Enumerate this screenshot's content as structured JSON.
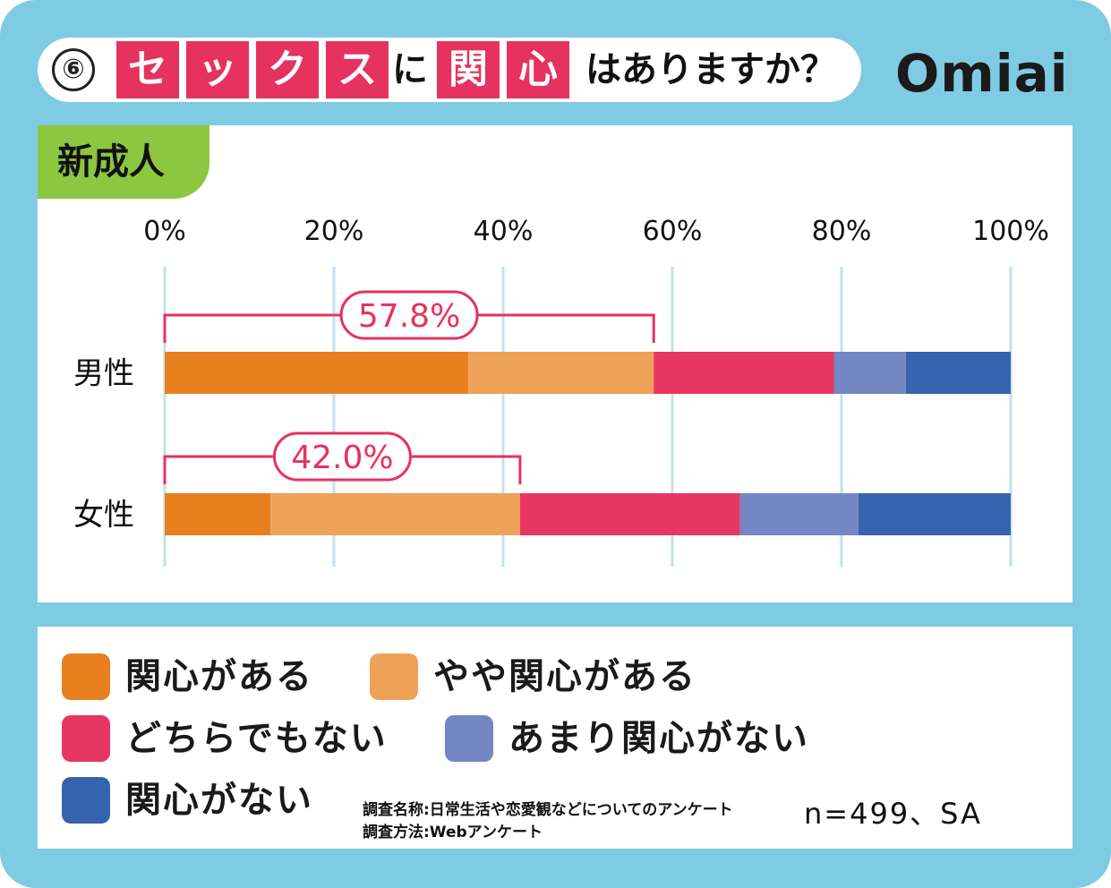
{
  "header": {
    "number": "⑥",
    "title_boxes": [
      "セ",
      "ッ",
      "ク",
      "ス",
      "関",
      "心"
    ],
    "title_ni": "に",
    "title_rest": "はありますか？",
    "logo": "Omiai"
  },
  "tab_label": "新成人",
  "chart_data": {
    "type": "stacked-bar-horizontal",
    "xlim": [
      0,
      100
    ],
    "ticks": [
      "0%",
      "20%",
      "40%",
      "60%",
      "80%",
      "100%"
    ],
    "categories": [
      "男性",
      "女性"
    ],
    "series": [
      {
        "name": "関心がある",
        "color": "#e88020",
        "values": [
          35.9,
          12.5
        ]
      },
      {
        "name": "やや関心がある",
        "color": "#eda257",
        "values": [
          21.9,
          29.5
        ]
      },
      {
        "name": "どちらでもない",
        "color": "#e83662",
        "values": [
          21.3,
          26.0
        ]
      },
      {
        "name": "あまり関心がない",
        "color": "#7486c4",
        "values": [
          8.5,
          14.0
        ]
      },
      {
        "name": "関心がない",
        "color": "#3563ad",
        "values": [
          12.4,
          18.0
        ]
      }
    ],
    "brackets": [
      {
        "category": "男性",
        "label": "57.8%",
        "value": 57.8
      },
      {
        "category": "女性",
        "label": "42.0%",
        "value": 42.0
      }
    ]
  },
  "notes": {
    "survey_name": "調査名称:日常生活や恋愛観などについてのアンケート",
    "survey_method": "調査方法:Webアンケート",
    "sample": "n=499、SA"
  }
}
